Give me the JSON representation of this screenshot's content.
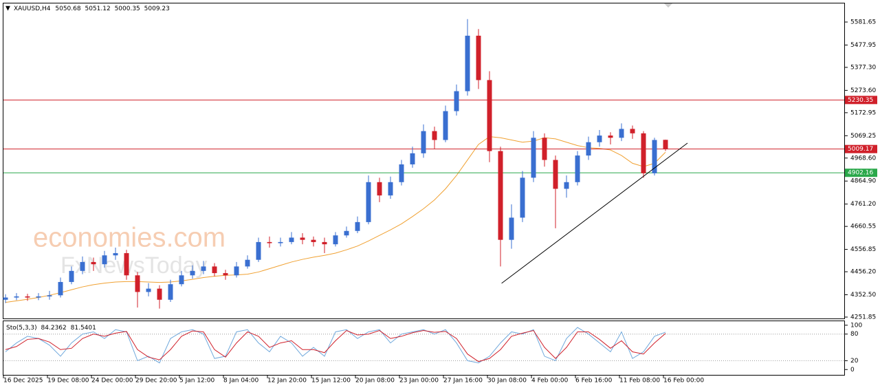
{
  "chart_data": [
    {
      "type": "candlestick",
      "title": "XAUUSD,H4",
      "categories": [
        "16 Dec 2025",
        null,
        null,
        null,
        "19 Dec 08:00",
        null,
        null,
        null,
        "24 Dec 00:00",
        null,
        null,
        null,
        "29 Dec 20:00",
        null,
        null,
        null,
        "5 Jan 12:00",
        null,
        null,
        null,
        "8 Jan 04:00",
        null,
        null,
        null,
        "12 Jan 20:00",
        null,
        null,
        null,
        "15 Jan 12:00",
        null,
        null,
        null,
        "20 Jan 08:00",
        null,
        null,
        null,
        "23 Jan 00:00",
        null,
        null,
        null,
        "27 Jan 16:00",
        null,
        null,
        null,
        "30 Jan 08:00",
        null,
        null,
        null,
        "4 Feb 00:00",
        null,
        null,
        null,
        "6 Feb 16:00",
        null,
        null,
        null,
        "11 Feb 08:00",
        null,
        null,
        null,
        "16 Feb 00:00"
      ],
      "open": [
        4330,
        4340,
        4345,
        4340,
        4345,
        4350,
        4410,
        4460,
        4500,
        4490,
        4530,
        4540,
        4440,
        4365,
        4380,
        4330,
        4400,
        4440,
        4460,
        4480,
        4450,
        4440,
        4480,
        4510,
        4590,
        4585,
        4590,
        4610,
        4600,
        4590,
        4580,
        4620,
        4640,
        4680,
        4860,
        4800,
        4860,
        4940,
        4990,
        5090,
        5050,
        5180,
        5270,
        5520,
        5320,
        5000,
        4600,
        4700,
        4880,
        5060,
        4960,
        4830,
        4860,
        4980,
        5040,
        5070,
        5060,
        5100,
        5080,
        4900,
        5050.68
      ],
      "high": [
        4355,
        4360,
        4357,
        4360,
        4370,
        4430,
        4480,
        4525,
        4520,
        4550,
        4565,
        4555,
        4455,
        4405,
        4395,
        4420,
        4460,
        4485,
        4505,
        4495,
        4465,
        4500,
        4530,
        4610,
        4615,
        4610,
        4635,
        4630,
        4615,
        4610,
        4635,
        4660,
        4705,
        4890,
        4880,
        4885,
        4960,
        5020,
        5120,
        5110,
        5205,
        5300,
        5595,
        5550,
        5360,
        5020,
        4760,
        4910,
        5090,
        5080,
        4980,
        4890,
        5000,
        5065,
        5095,
        5085,
        5125,
        5115,
        5090,
        5060,
        5051.12
      ],
      "low": [
        4315,
        4328,
        4325,
        4328,
        4330,
        4340,
        4400,
        4445,
        4460,
        4475,
        4510,
        4420,
        4295,
        4345,
        4290,
        4320,
        4390,
        4425,
        4445,
        4435,
        4420,
        4430,
        4470,
        4500,
        4565,
        4570,
        4580,
        4580,
        4570,
        4540,
        4570,
        4610,
        4630,
        4670,
        4770,
        4785,
        4845,
        4925,
        4970,
        5010,
        5040,
        5160,
        5250,
        5280,
        4950,
        4480,
        4560,
        4680,
        4860,
        4930,
        4652,
        4790,
        4845,
        4960,
        5020,
        5030,
        5045,
        5055,
        4880,
        4890,
        5000.35
      ],
      "close": [
        4340,
        4345,
        4340,
        4345,
        4350,
        4410,
        4460,
        4500,
        4490,
        4530,
        4540,
        4440,
        4365,
        4380,
        4330,
        4400,
        4440,
        4460,
        4480,
        4450,
        4440,
        4480,
        4510,
        4590,
        4585,
        4590,
        4610,
        4600,
        4590,
        4580,
        4620,
        4640,
        4680,
        4860,
        4800,
        4860,
        4940,
        4990,
        5090,
        5050,
        5180,
        5270,
        5520,
        5320,
        5000,
        4600,
        4700,
        4880,
        5060,
        4960,
        4830,
        4860,
        4980,
        5040,
        5070,
        5060,
        5100,
        5080,
        4900,
        5050,
        5009.23
      ],
      "up_color": "#3a6fd0",
      "down_color": "#d0202a",
      "overlays": [
        {
          "color": "#f0a030",
          "values": [
            4318,
            4325,
            4332,
            4340,
            4350,
            4362,
            4375,
            4388,
            4398,
            4405,
            4410,
            4412,
            4412,
            4410,
            4408,
            4410,
            4415,
            4422,
            4430,
            4436,
            4440,
            4442,
            4445,
            4455,
            4470,
            4485,
            4500,
            4512,
            4522,
            4530,
            4540,
            4555,
            4572,
            4595,
            4620,
            4645,
            4672,
            4705,
            4740,
            4780,
            4830,
            4890,
            4960,
            5030,
            5065,
            5060,
            5050,
            5040,
            5045,
            5060,
            5055,
            5040,
            5025,
            5015,
            5012,
            5005,
            4980,
            4945,
            4930,
            4945,
            4995
          ]
        }
      ],
      "levels": [
        {
          "value": 5230.35,
          "color": "#d0202a"
        },
        {
          "value": 5009.17,
          "color": "#d0202a"
        },
        {
          "value": 4902.16,
          "color": "#2aa84a"
        }
      ],
      "trendline": {
        "x": [
          45.1,
          62
        ],
        "y": [
          4404,
          5036
        ],
        "color": "#000000"
      },
      "watermarks": [
        "economies.com",
        "FxNewsToday"
      ],
      "ylim": [
        4245.6,
        5665.4
      ],
      "yticks": [
        5581.65,
        5477.95,
        {
          "value": 5377.3,
          "label": "5377.30"
        },
        {
          "value": 5273.6,
          "label": "5273.60"
        },
        5172.95,
        5069.25,
        {
          "value": 4968.6,
          "label": "4968.60"
        },
        {
          "value": 4864.9,
          "label": "4864.90"
        },
        {
          "value": 4761.2,
          "label": "4761.20"
        },
        4660.55,
        4556.85,
        {
          "value": 4456.2,
          "label": "4456.20"
        },
        {
          "value": 4352.5,
          "label": "4352.50"
        },
        4251.85
      ]
    },
    {
      "type": "line",
      "title": "Sto(5,3,3)",
      "series": [
        {
          "color": "#6fa8dc",
          "values": [
            40,
            60,
            75,
            70,
            55,
            30,
            60,
            80,
            85,
            70,
            90,
            85,
            20,
            30,
            15,
            70,
            85,
            90,
            80,
            25,
            30,
            85,
            90,
            60,
            40,
            75,
            60,
            30,
            50,
            30,
            85,
            90,
            70,
            85,
            90,
            60,
            80,
            85,
            90,
            80,
            90,
            60,
            20,
            15,
            30,
            60,
            85,
            80,
            90,
            30,
            20,
            70,
            95,
            80,
            60,
            40,
            85,
            25,
            40,
            75,
            84.2362
          ]
        },
        {
          "color": "#d0202a",
          "values": [
            45,
            52,
            68,
            70,
            62,
            45,
            48,
            70,
            80,
            75,
            82,
            86,
            45,
            28,
            22,
            45,
            75,
            87,
            85,
            45,
            28,
            60,
            85,
            75,
            50,
            60,
            65,
            45,
            45,
            38,
            65,
            88,
            78,
            80,
            88,
            70,
            75,
            83,
            88,
            84,
            86,
            70,
            35,
            18,
            25,
            45,
            75,
            82,
            88,
            50,
            25,
            50,
            85,
            85,
            68,
            48,
            65,
            40,
            35,
            60,
            81.5401
          ]
        }
      ],
      "levels": [
        80,
        20
      ],
      "ylim": [
        -12,
        109
      ],
      "yticks": [
        100,
        80,
        20,
        0
      ]
    }
  ]
}
